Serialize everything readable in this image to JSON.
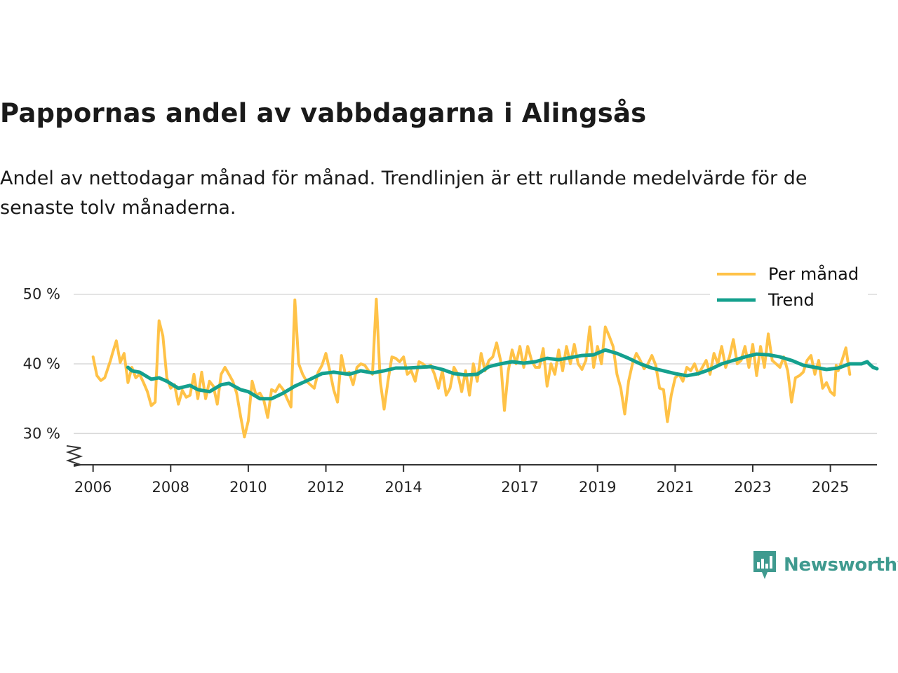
{
  "title": "Pappornas andel av vabbdagarna i Alingsås",
  "subtitle": "Andel av nettodagar månad för månad. Trendlinjen är ett rullande medelvärde för de senaste tolv månaderna.",
  "brand": {
    "name": "Newsworthy"
  },
  "colors": {
    "monthly": "#ffc247",
    "trend": "#14a08e",
    "grid": "#d9d9d9",
    "axis": "#333333",
    "brand": "#3f9a8f"
  },
  "chart_data": {
    "type": "line",
    "title": "Pappornas andel av vabbdagarna i Alingsås",
    "xlabel": "",
    "ylabel": "",
    "xlim": [
      2005.5,
      2026.2
    ],
    "ylim": [
      25.5,
      54
    ],
    "yticks": [
      30,
      40,
      50
    ],
    "ytick_labels": [
      "30 %",
      "40 %",
      "50 %"
    ],
    "xticks": [
      2006,
      2008,
      2010,
      2012,
      2014,
      2017,
      2019,
      2021,
      2023,
      2025
    ],
    "xtick_labels": [
      "2006",
      "2008",
      "2010",
      "2012",
      "2014",
      "2017",
      "2019",
      "2021",
      "2023",
      "2025"
    ],
    "grid": true,
    "legend_position": "top-right",
    "legend": [
      "Per månad",
      "Trend"
    ],
    "series": [
      {
        "name": "Per månad",
        "points": [
          [
            2006.0,
            41.0
          ],
          [
            2006.1,
            38.3
          ],
          [
            2006.2,
            37.6
          ],
          [
            2006.3,
            38.0
          ],
          [
            2006.45,
            40.5
          ],
          [
            2006.5,
            41.5
          ],
          [
            2006.6,
            43.3
          ],
          [
            2006.7,
            40.2
          ],
          [
            2006.8,
            41.5
          ],
          [
            2006.9,
            37.3
          ],
          [
            2007.0,
            39.5
          ],
          [
            2007.1,
            38.0
          ],
          [
            2007.2,
            38.5
          ],
          [
            2007.3,
            37.3
          ],
          [
            2007.4,
            36.0
          ],
          [
            2007.5,
            34.0
          ],
          [
            2007.6,
            34.5
          ],
          [
            2007.7,
            46.2
          ],
          [
            2007.8,
            44.0
          ],
          [
            2007.9,
            38.0
          ],
          [
            2008.0,
            36.5
          ],
          [
            2008.1,
            37.0
          ],
          [
            2008.2,
            34.2
          ],
          [
            2008.3,
            36.2
          ],
          [
            2008.4,
            35.2
          ],
          [
            2008.5,
            35.5
          ],
          [
            2008.6,
            38.5
          ],
          [
            2008.7,
            35.0
          ],
          [
            2008.8,
            38.8
          ],
          [
            2008.9,
            35.0
          ],
          [
            2009.0,
            37.5
          ],
          [
            2009.1,
            36.8
          ],
          [
            2009.2,
            34.2
          ],
          [
            2009.3,
            38.5
          ],
          [
            2009.4,
            39.5
          ],
          [
            2009.5,
            38.5
          ],
          [
            2009.6,
            37.5
          ],
          [
            2009.7,
            35.8
          ],
          [
            2009.8,
            32.5
          ],
          [
            2009.9,
            29.5
          ],
          [
            2010.0,
            31.8
          ],
          [
            2010.1,
            37.5
          ],
          [
            2010.2,
            35.5
          ],
          [
            2010.3,
            35.8
          ],
          [
            2010.4,
            34.8
          ],
          [
            2010.5,
            32.3
          ],
          [
            2010.6,
            36.3
          ],
          [
            2010.7,
            36.0
          ],
          [
            2010.8,
            37.0
          ],
          [
            2010.9,
            36.3
          ],
          [
            2011.0,
            35.0
          ],
          [
            2011.1,
            33.8
          ],
          [
            2011.2,
            49.2
          ],
          [
            2011.3,
            40.0
          ],
          [
            2011.4,
            38.5
          ],
          [
            2011.5,
            37.5
          ],
          [
            2011.6,
            37.0
          ],
          [
            2011.7,
            36.5
          ],
          [
            2011.8,
            38.8
          ],
          [
            2011.9,
            39.8
          ],
          [
            2012.0,
            41.5
          ],
          [
            2012.1,
            39.0
          ],
          [
            2012.2,
            36.3
          ],
          [
            2012.3,
            34.5
          ],
          [
            2012.4,
            41.2
          ],
          [
            2012.5,
            38.5
          ],
          [
            2012.6,
            38.8
          ],
          [
            2012.7,
            37.0
          ],
          [
            2012.8,
            39.5
          ],
          [
            2012.9,
            40.0
          ],
          [
            2013.0,
            39.8
          ],
          [
            2013.1,
            39.0
          ],
          [
            2013.2,
            38.5
          ],
          [
            2013.3,
            49.3
          ],
          [
            2013.4,
            37.5
          ],
          [
            2013.5,
            33.5
          ],
          [
            2013.6,
            37.5
          ],
          [
            2013.7,
            41.0
          ],
          [
            2013.8,
            40.8
          ],
          [
            2013.9,
            40.3
          ],
          [
            2014.0,
            41.0
          ],
          [
            2014.1,
            38.5
          ],
          [
            2014.2,
            39.0
          ],
          [
            2014.3,
            37.5
          ],
          [
            2014.4,
            40.3
          ],
          [
            2014.5,
            40.0
          ],
          [
            2014.6,
            39.5
          ],
          [
            2014.7,
            39.8
          ],
          [
            2014.8,
            38.5
          ],
          [
            2014.9,
            36.5
          ],
          [
            2015.0,
            39.0
          ],
          [
            2015.1,
            35.5
          ],
          [
            2015.2,
            36.5
          ],
          [
            2015.3,
            39.5
          ],
          [
            2015.4,
            38.5
          ],
          [
            2015.5,
            36.0
          ],
          [
            2015.6,
            39.0
          ],
          [
            2015.7,
            35.5
          ],
          [
            2015.8,
            40.0
          ],
          [
            2015.9,
            37.5
          ],
          [
            2016.0,
            41.5
          ],
          [
            2016.1,
            39.0
          ],
          [
            2016.2,
            40.5
          ],
          [
            2016.3,
            41.0
          ],
          [
            2016.4,
            43.0
          ],
          [
            2016.5,
            40.5
          ],
          [
            2016.6,
            33.3
          ],
          [
            2016.7,
            39.0
          ],
          [
            2016.8,
            42.0
          ],
          [
            2016.9,
            40.0
          ],
          [
            2017.0,
            42.5
          ],
          [
            2017.1,
            39.5
          ],
          [
            2017.2,
            42.5
          ],
          [
            2017.3,
            40.5
          ],
          [
            2017.4,
            39.5
          ],
          [
            2017.5,
            39.5
          ],
          [
            2017.6,
            42.2
          ],
          [
            2017.7,
            36.8
          ],
          [
            2017.8,
            40.0
          ],
          [
            2017.9,
            38.5
          ],
          [
            2018.0,
            42.0
          ],
          [
            2018.1,
            39.0
          ],
          [
            2018.2,
            42.5
          ],
          [
            2018.3,
            40.0
          ],
          [
            2018.4,
            42.8
          ],
          [
            2018.5,
            40.0
          ],
          [
            2018.6,
            39.2
          ],
          [
            2018.7,
            40.5
          ],
          [
            2018.8,
            45.3
          ],
          [
            2018.9,
            39.5
          ],
          [
            2019.0,
            42.5
          ],
          [
            2019.1,
            40.0
          ],
          [
            2019.2,
            45.3
          ],
          [
            2019.3,
            44.0
          ],
          [
            2019.4,
            42.5
          ],
          [
            2019.5,
            38.5
          ],
          [
            2019.6,
            36.5
          ],
          [
            2019.7,
            32.8
          ],
          [
            2019.8,
            37.5
          ],
          [
            2019.9,
            40.0
          ],
          [
            2020.0,
            41.5
          ],
          [
            2020.1,
            40.5
          ],
          [
            2020.2,
            39.3
          ],
          [
            2020.3,
            40.0
          ],
          [
            2020.4,
            41.2
          ],
          [
            2020.5,
            39.8
          ],
          [
            2020.6,
            36.5
          ],
          [
            2020.7,
            36.3
          ],
          [
            2020.8,
            31.7
          ],
          [
            2020.9,
            35.5
          ],
          [
            2021.0,
            38.0
          ],
          [
            2021.1,
            38.5
          ],
          [
            2021.2,
            37.5
          ],
          [
            2021.3,
            39.5
          ],
          [
            2021.4,
            39.0
          ],
          [
            2021.5,
            40.0
          ],
          [
            2021.6,
            38.5
          ],
          [
            2021.7,
            39.5
          ],
          [
            2021.8,
            40.5
          ],
          [
            2021.9,
            38.5
          ],
          [
            2022.0,
            41.5
          ],
          [
            2022.1,
            40.0
          ],
          [
            2022.2,
            42.5
          ],
          [
            2022.3,
            39.5
          ],
          [
            2022.4,
            41.0
          ],
          [
            2022.5,
            43.5
          ],
          [
            2022.6,
            40.0
          ],
          [
            2022.7,
            40.5
          ],
          [
            2022.8,
            42.5
          ],
          [
            2022.9,
            39.5
          ],
          [
            2023.0,
            42.8
          ],
          [
            2023.1,
            38.3
          ],
          [
            2023.2,
            42.5
          ],
          [
            2023.3,
            39.5
          ],
          [
            2023.4,
            44.3
          ],
          [
            2023.5,
            40.5
          ],
          [
            2023.6,
            40.0
          ],
          [
            2023.7,
            39.5
          ],
          [
            2023.8,
            41.0
          ],
          [
            2023.9,
            39.0
          ],
          [
            2024.0,
            34.5
          ],
          [
            2024.1,
            38.0
          ],
          [
            2024.2,
            38.3
          ],
          [
            2024.3,
            38.8
          ],
          [
            2024.4,
            40.5
          ],
          [
            2024.5,
            41.2
          ],
          [
            2024.6,
            38.5
          ],
          [
            2024.7,
            40.5
          ],
          [
            2024.8,
            36.5
          ],
          [
            2024.9,
            37.3
          ],
          [
            2025.0,
            36.0
          ],
          [
            2025.1,
            35.5
          ],
          [
            2025.15,
            39.8
          ],
          [
            2025.2,
            39.0
          ],
          [
            2025.3,
            40.5
          ],
          [
            2025.4,
            42.3
          ],
          [
            2025.5,
            38.5
          ]
        ]
      },
      {
        "name": "Trend",
        "points": [
          [
            2006.9,
            39.5
          ],
          [
            2007.0,
            39.0
          ],
          [
            2007.2,
            38.8
          ],
          [
            2007.5,
            37.8
          ],
          [
            2007.7,
            38.0
          ],
          [
            2007.9,
            37.5
          ],
          [
            2008.2,
            36.5
          ],
          [
            2008.5,
            36.9
          ],
          [
            2008.7,
            36.3
          ],
          [
            2009.0,
            36.0
          ],
          [
            2009.3,
            37.0
          ],
          [
            2009.5,
            37.2
          ],
          [
            2009.8,
            36.3
          ],
          [
            2010.0,
            36.0
          ],
          [
            2010.3,
            35.0
          ],
          [
            2010.6,
            35.0
          ],
          [
            2010.9,
            35.8
          ],
          [
            2011.2,
            36.8
          ],
          [
            2011.6,
            37.8
          ],
          [
            2011.9,
            38.6
          ],
          [
            2012.2,
            38.8
          ],
          [
            2012.6,
            38.5
          ],
          [
            2012.9,
            39.0
          ],
          [
            2013.2,
            38.7
          ],
          [
            2013.5,
            39.0
          ],
          [
            2013.8,
            39.4
          ],
          [
            2014.1,
            39.4
          ],
          [
            2014.4,
            39.5
          ],
          [
            2014.7,
            39.6
          ],
          [
            2015.0,
            39.2
          ],
          [
            2015.3,
            38.6
          ],
          [
            2015.6,
            38.4
          ],
          [
            2015.9,
            38.5
          ],
          [
            2016.2,
            39.6
          ],
          [
            2016.5,
            40.0
          ],
          [
            2016.8,
            40.3
          ],
          [
            2017.1,
            40.1
          ],
          [
            2017.4,
            40.3
          ],
          [
            2017.7,
            40.8
          ],
          [
            2018.0,
            40.6
          ],
          [
            2018.3,
            40.9
          ],
          [
            2018.6,
            41.2
          ],
          [
            2018.9,
            41.3
          ],
          [
            2019.2,
            42.0
          ],
          [
            2019.5,
            41.5
          ],
          [
            2019.8,
            40.8
          ],
          [
            2020.1,
            40.0
          ],
          [
            2020.4,
            39.4
          ],
          [
            2020.7,
            39.0
          ],
          [
            2021.0,
            38.6
          ],
          [
            2021.3,
            38.3
          ],
          [
            2021.6,
            38.6
          ],
          [
            2021.9,
            39.2
          ],
          [
            2022.2,
            40.0
          ],
          [
            2022.5,
            40.5
          ],
          [
            2022.8,
            41.0
          ],
          [
            2023.1,
            41.4
          ],
          [
            2023.4,
            41.3
          ],
          [
            2023.7,
            41.0
          ],
          [
            2024.0,
            40.5
          ],
          [
            2024.3,
            39.8
          ],
          [
            2024.6,
            39.5
          ],
          [
            2024.9,
            39.2
          ],
          [
            2025.2,
            39.4
          ],
          [
            2025.5,
            40.0
          ],
          [
            2025.8,
            40.0
          ],
          [
            2025.95,
            40.3
          ],
          [
            2026.0,
            40.0
          ],
          [
            2026.1,
            39.5
          ],
          [
            2026.2,
            39.3
          ]
        ]
      }
    ]
  }
}
